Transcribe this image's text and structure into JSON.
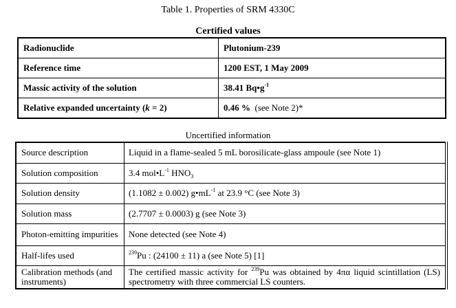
{
  "title": "Table 1. Properties of SRM 4330C",
  "certified": {
    "caption": "Certified values",
    "rows": [
      {
        "label": "Radionuclide",
        "value": "Plutonium-239"
      },
      {
        "label": "Reference time",
        "value": "1200 EST, 1 May 2009"
      },
      {
        "label": "Massic activity of the solution",
        "value": "38.41 Bq•g",
        "value_sup": "-1"
      },
      {
        "label_pre": "Relative expanded uncertainty (",
        "label_k": "k",
        "label_post": " = 2)",
        "value": "0.46 %",
        "value_note": "(see Note 2)*"
      }
    ]
  },
  "uncertified": {
    "caption": "Uncertified information",
    "rows": [
      {
        "label": "Source description",
        "value": "Liquid in a flame-sealed 5 mL borosilicate-glass ampoule (see Note 1)"
      },
      {
        "label": "Solution composition",
        "value": "3.4 mol•L",
        "value_sup": "-1",
        "value_post": " HNO",
        "value_sub": "3"
      },
      {
        "label": "Solution density",
        "value": "(1.1082 ± 0.002) g•mL",
        "value_sup": "-1",
        "value_post": " at 23.9 °C (see Note 3)"
      },
      {
        "label": "Solution mass",
        "value": "(2.7707 ± 0.0003) g (see Note 3)"
      },
      {
        "label": "Photon-emitting impurities",
        "value": "None detected (see Note 4)"
      },
      {
        "label": "Half-lifes used",
        "value_sup": "239",
        "value": "Pu : (24100 ± 11) a (see Note 5) [1]"
      },
      {
        "label": "Calibration methods (and instruments)",
        "value": "The certified massic activity for ",
        "value_sup": "239",
        "value_post": "Pu was obtained by 4πα liquid scintillation (LS) spectrometry with three commercial LS counters."
      }
    ]
  }
}
